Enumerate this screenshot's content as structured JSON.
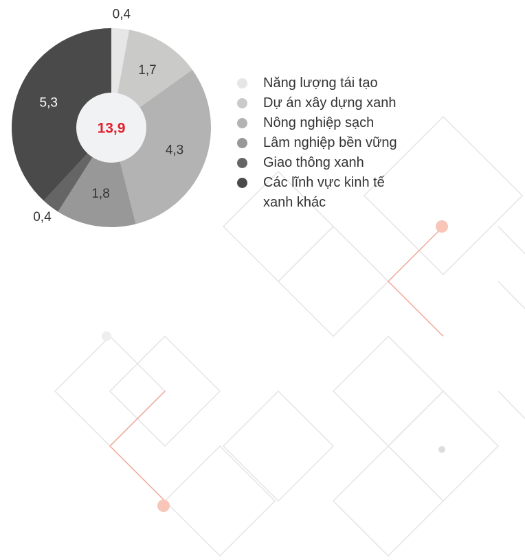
{
  "chart_data": {
    "type": "pie",
    "categories": [
      "Năng lượng tái tạo",
      "Dự án xây dựng xanh",
      "Nông nghiệp sạch",
      "Lâm nghiệp bền vững",
      "Giao thông xanh",
      "Các lĩnh vực kinh tế xanh khác"
    ],
    "values": [
      0.4,
      1.7,
      4.3,
      1.8,
      0.4,
      5.3
    ],
    "value_labels": [
      "0,4",
      "1,7",
      "4,3",
      "1,8",
      "0,4",
      "5,3"
    ],
    "colors": [
      "#e6e6e6",
      "#cacac8",
      "#b2b3b2",
      "#979897",
      "#646564",
      "#4a4a4a"
    ],
    "center_label": "13,9",
    "legend": "right"
  }
}
